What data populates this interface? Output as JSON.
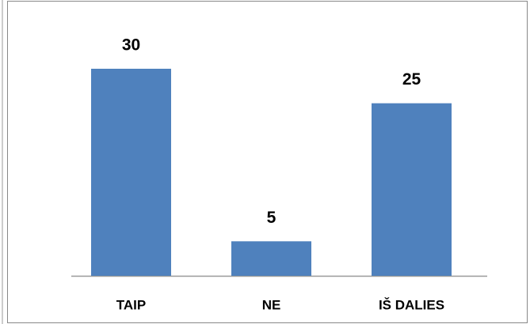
{
  "chart_data": {
    "type": "bar",
    "categories": [
      "TAIP",
      "NE",
      "IŠ DALIES"
    ],
    "values": [
      30,
      5,
      25
    ],
    "color": "#4f81bd"
  }
}
